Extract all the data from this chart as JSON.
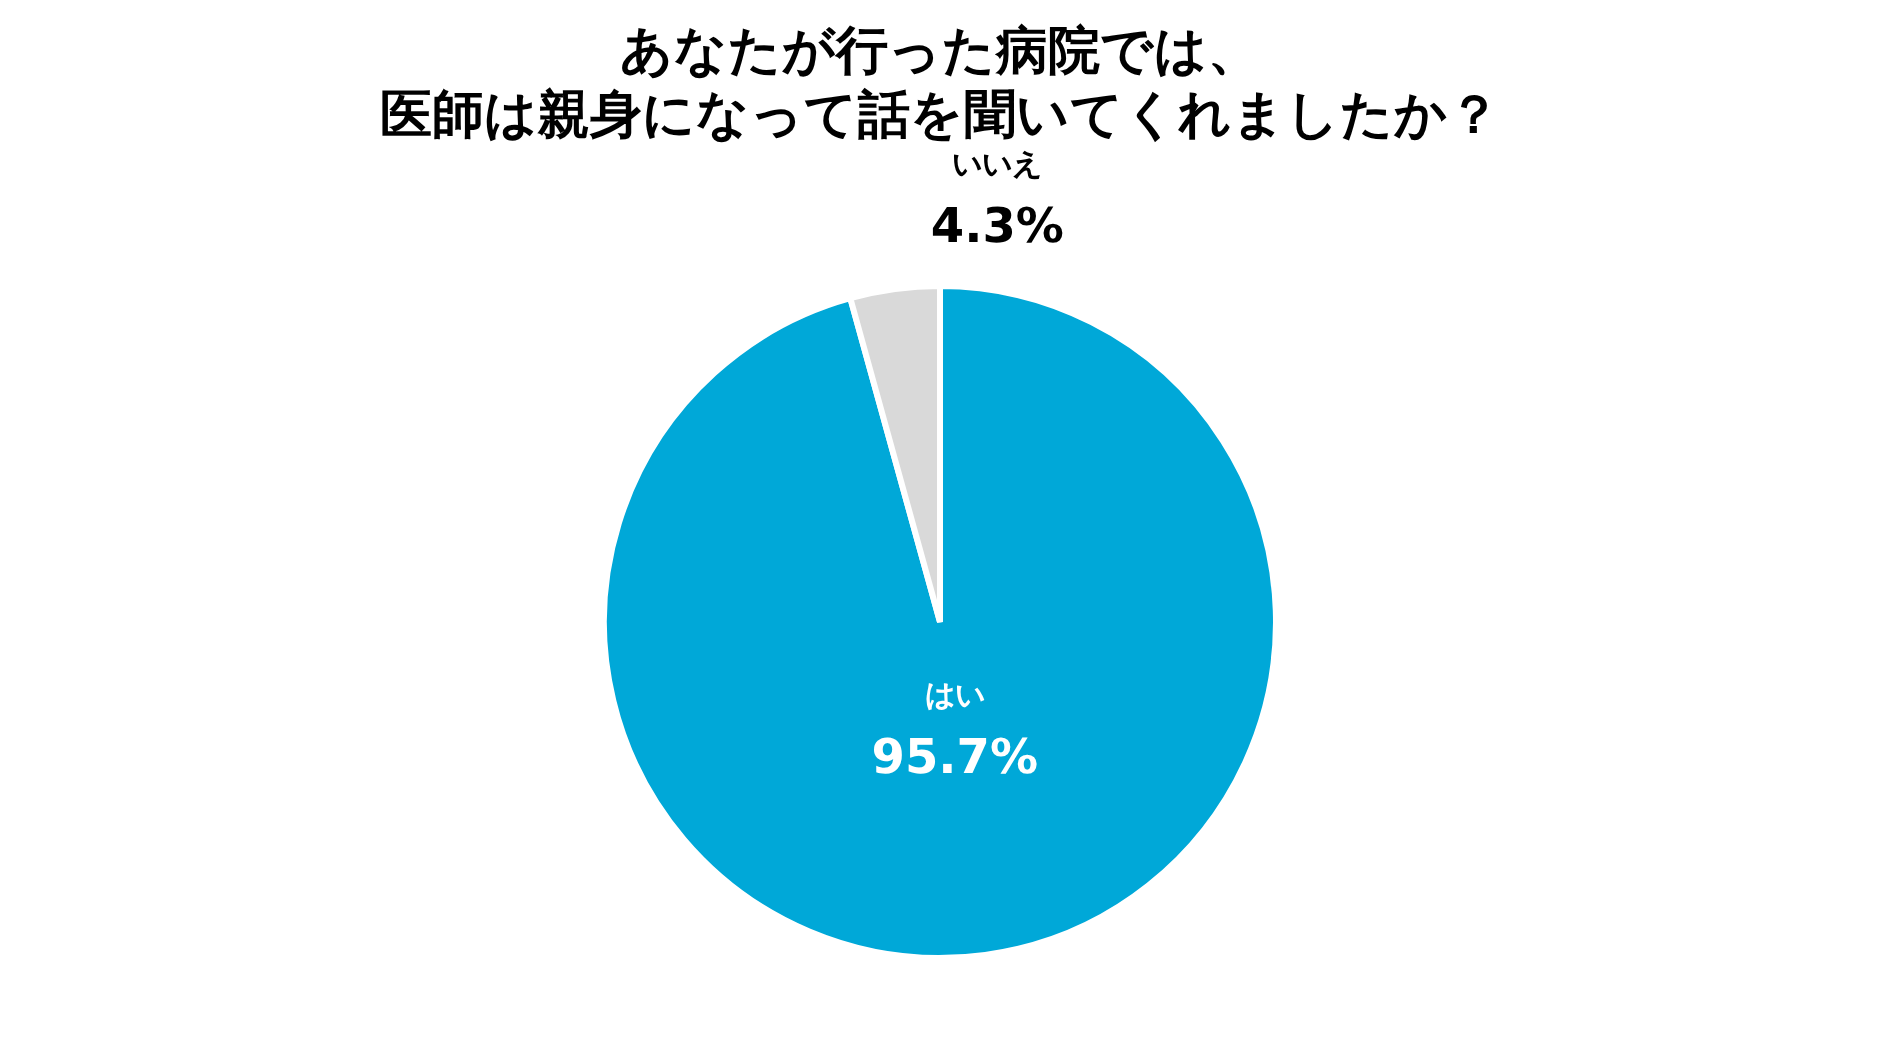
{
  "chart_data": {
    "type": "pie",
    "title": "あなたが行った病院では、",
    "subtitle": "医師は親身になって話を聞いてくれましたか？",
    "categories": [
      "はい",
      "いいえ"
    ],
    "values": [
      95.7,
      4.3
    ],
    "colors": [
      "#00a8d8",
      "#d9d9d9"
    ],
    "value_labels": [
      "95.7%",
      "4.3%"
    ]
  }
}
